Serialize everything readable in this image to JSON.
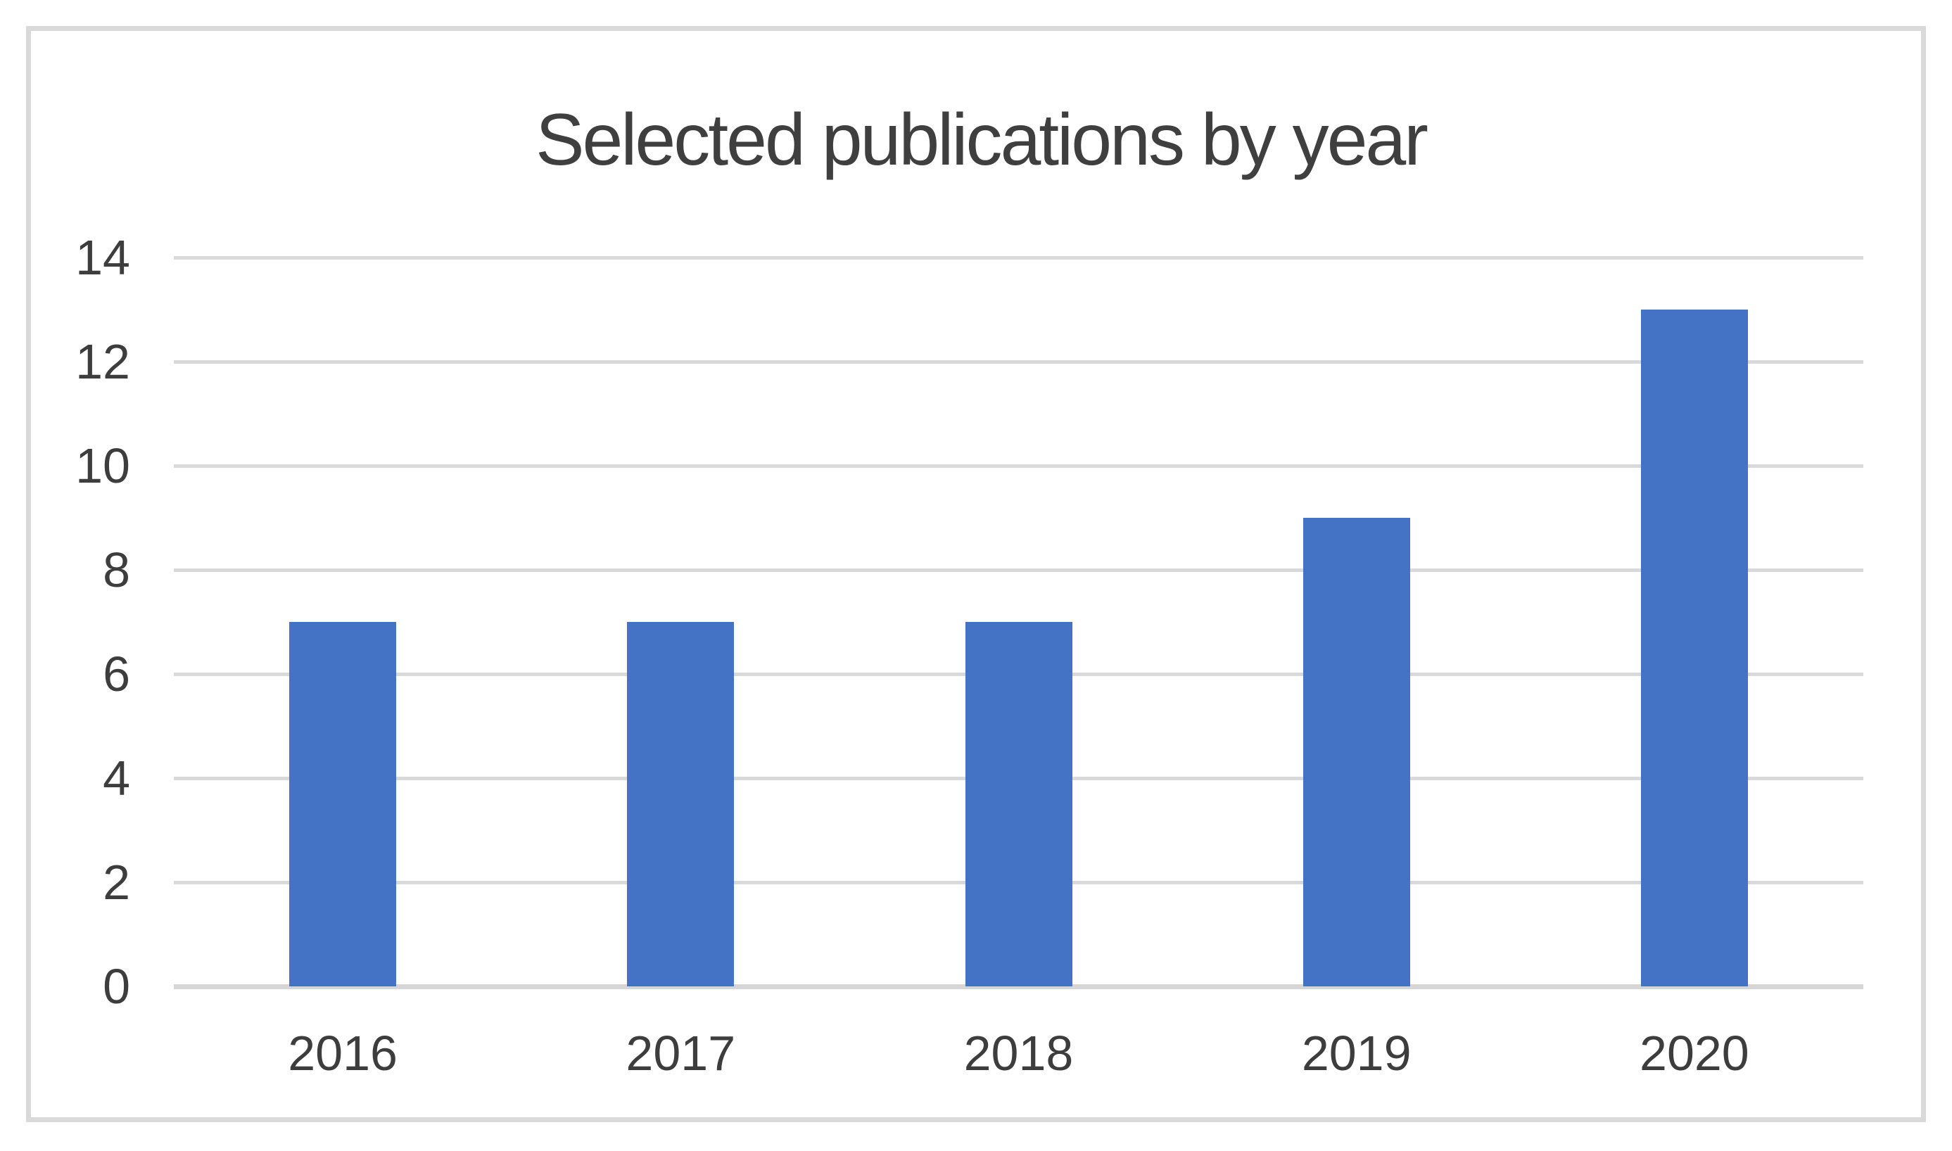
{
  "chart_data": {
    "type": "bar",
    "title": "Selected publications by year",
    "categories": [
      "2016",
      "2017",
      "2018",
      "2019",
      "2020"
    ],
    "values": [
      7,
      7,
      7,
      9,
      13
    ],
    "xlabel": "",
    "ylabel": "",
    "ylim": [
      0,
      14
    ],
    "yticks": [
      0,
      2,
      4,
      6,
      8,
      10,
      12,
      14
    ],
    "grid": true,
    "legend": "none",
    "colors": {
      "bar": "#4472c4",
      "gridline": "#d9d9d9",
      "axis_line": "#d6d6d6",
      "tick_label": "#3d3d3d",
      "title": "#3f3f3f",
      "frame_border": "#d9d9d9",
      "background": "#ffffff"
    }
  }
}
